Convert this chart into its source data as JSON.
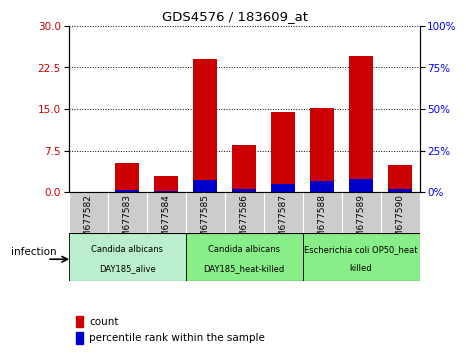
{
  "title": "GDS4576 / 183609_at",
  "samples": [
    "GSM677582",
    "GSM677583",
    "GSM677584",
    "GSM677585",
    "GSM677586",
    "GSM677587",
    "GSM677588",
    "GSM677589",
    "GSM677590"
  ],
  "count_values": [
    0.0,
    5.2,
    3.0,
    24.0,
    8.5,
    14.5,
    15.2,
    24.5,
    5.0
  ],
  "percentile_values": [
    0.0,
    1.2,
    1.0,
    7.5,
    2.2,
    5.0,
    7.0,
    8.0,
    2.0
  ],
  "count_color": "#cc0000",
  "percentile_color": "#0000cc",
  "left_ylim": [
    0,
    30
  ],
  "right_ylim": [
    0,
    100
  ],
  "left_yticks": [
    0,
    7.5,
    15,
    22.5,
    30
  ],
  "right_yticks": [
    0,
    25,
    50,
    75,
    100
  ],
  "bar_width": 0.6,
  "groups": [
    {
      "label": "Candida albicans\nDAY185_alive",
      "start": 0,
      "end": 3
    },
    {
      "label": "Candida albicans\nDAY185_heat-killed",
      "start": 3,
      "end": 6
    },
    {
      "label": "Escherichia coli OP50_heat\nkilled",
      "start": 6,
      "end": 9
    }
  ],
  "group_colors": [
    "#bbeecc",
    "#88ee88",
    "#88ee88"
  ],
  "legend_count_label": "count",
  "legend_percentile_label": "percentile rank within the sample",
  "infection_label": "infection",
  "tick_bg_color": "#cccccc",
  "plot_bg_color": "#ffffff"
}
